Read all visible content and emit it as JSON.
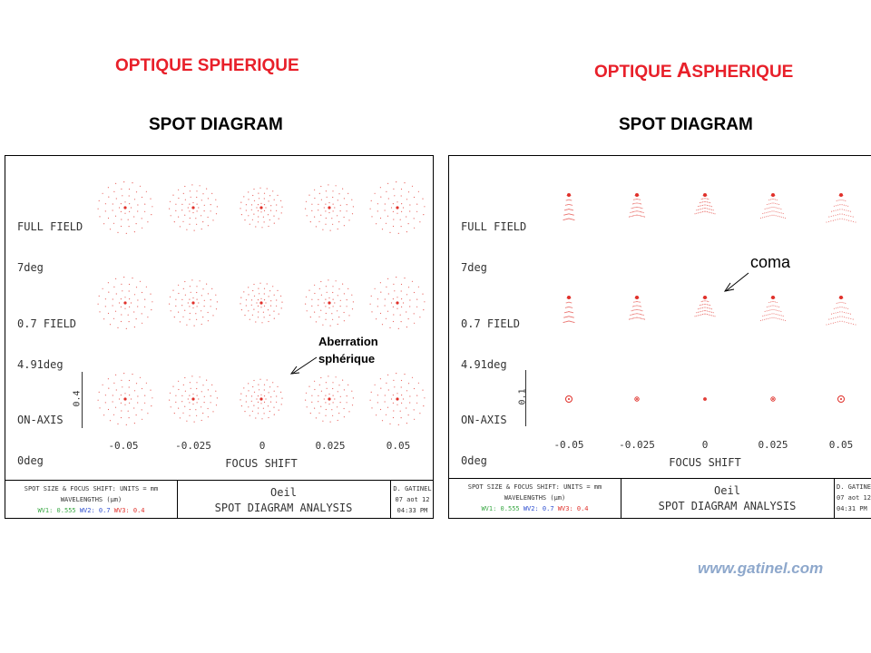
{
  "headings": {
    "left_title": "OPTIQUE SPHERIQUE",
    "right_title_prefix": "OPTIQUE ",
    "right_title_big": "A",
    "right_title_rest": "SPHERIQUE",
    "left_subtitle": "SPOT DIAGRAM",
    "right_subtitle": "SPOT DIAGRAM"
  },
  "colors": {
    "heading_red": "#e8202a",
    "spot_red": "#e0302a",
    "wv1_green": "#3aa845",
    "wv2_blue": "#3050d0",
    "wv3_red": "#e0302a",
    "watermark": "#8ea8cc"
  },
  "panels": [
    {
      "id": "spherique",
      "row_labels": [
        {
          "line1": "FULL FIELD",
          "line2": "7deg"
        },
        {
          "line1": "0.7 FIELD",
          "line2": "4.91deg"
        },
        {
          "line1": "ON-AXIS",
          "line2": "0deg"
        }
      ],
      "focus_shift_ticks": [
        "-0.05",
        "-0.025",
        "0",
        "0.025",
        "0.05"
      ],
      "focus_shift_label": "FOCUS SHIFT",
      "scale_label": "0.4",
      "callout": {
        "line1": "Aberration",
        "line2": "sphérique"
      },
      "titlebox": {
        "units": "SPOT SIZE & FOCUS SHIFT: UNITS = mm",
        "wavelengths": "WAVELENGTHS (µm)",
        "wv1_label": "WV1:",
        "wv1_value": "0.555",
        "wv2_label": "WV2:",
        "wv2_value": "0.7",
        "wv3_label": "WV3:",
        "wv3_value": "0.4",
        "system": "Oeil",
        "analysis": "SPOT DIAGRAM ANALYSIS",
        "author": "D. GATINEL",
        "date": "07 aot 12",
        "time": "04:33 PM"
      }
    },
    {
      "id": "aspherique",
      "row_labels": [
        {
          "line1": "FULL FIELD",
          "line2": "7deg"
        },
        {
          "line1": "0.7 FIELD",
          "line2": "4.91deg"
        },
        {
          "line1": "ON-AXIS",
          "line2": "0deg"
        }
      ],
      "focus_shift_ticks": [
        "-0.05",
        "-0.025",
        "0",
        "0.025",
        "0.05"
      ],
      "focus_shift_label": "FOCUS SHIFT",
      "scale_label": "0.1",
      "callout": {
        "line1": "coma"
      },
      "titlebox": {
        "units": "SPOT SIZE & FOCUS SHIFT: UNITS = mm",
        "wavelengths": "WAVELENGTHS (µm)",
        "wv1_label": "WV1:",
        "wv1_value": "0.555",
        "wv2_label": "WV2:",
        "wv2_value": "0.7",
        "wv3_label": "WV3:",
        "wv3_value": "0.4",
        "system": "Oeil",
        "analysis": "SPOT DIAGRAM ANALYSIS",
        "author": "D. GATINEL",
        "date": "07 aot 12",
        "time": "04:31 PM"
      }
    }
  ],
  "watermark": "www.gatinel.com"
}
